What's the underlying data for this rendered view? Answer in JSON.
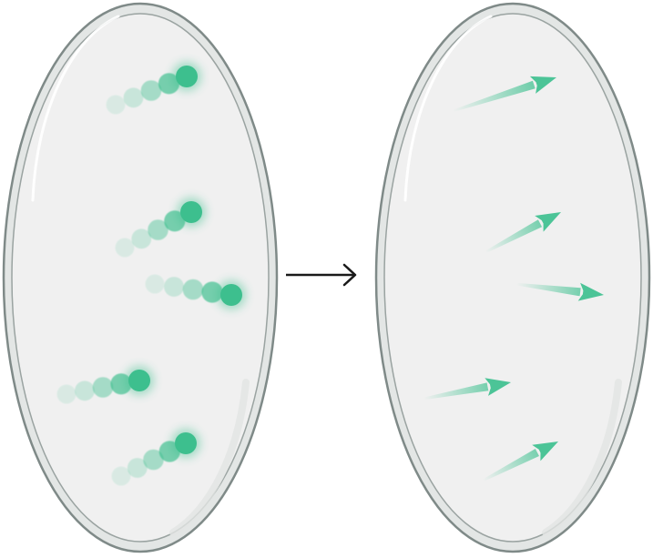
{
  "colors": {
    "particle": "#3dbf8e",
    "arrow": "#4cc497",
    "dish_fill": "#f0f0f0",
    "dish_rim": "#7f8a88",
    "dish_rim_fill": "#e3e6e5",
    "connector": "#1a1a1a",
    "background": "#ffffff"
  },
  "left_panel": {
    "name": "dish-with-particle-trails",
    "trail_count": 5,
    "dots_per_trail": 5
  },
  "right_panel": {
    "name": "dish-with-motion-arrows",
    "arrow_count": 5
  },
  "connector": {
    "icon": "right-arrow-icon"
  }
}
